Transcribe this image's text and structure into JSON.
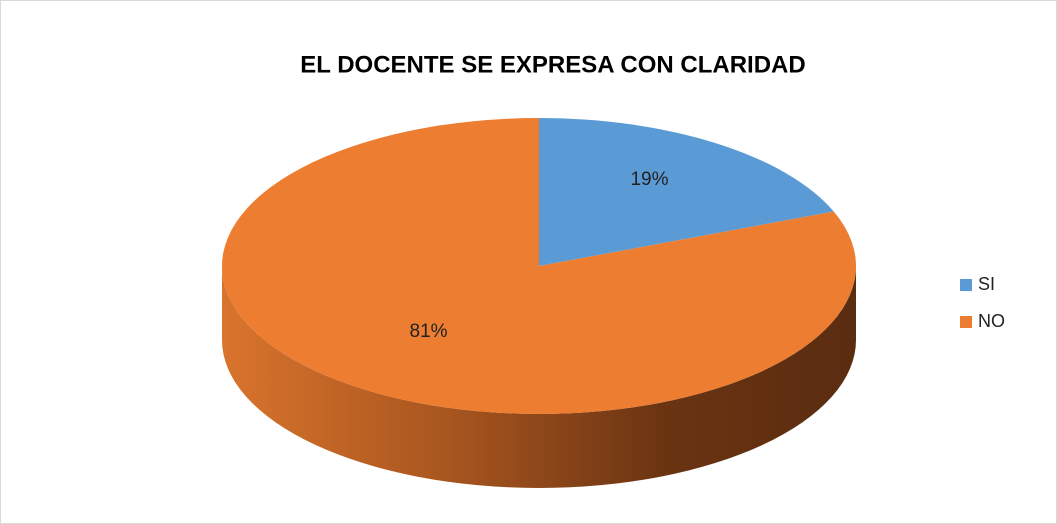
{
  "chart_data": {
    "type": "pie",
    "title": "EL DOCENTE SE EXPRESA CON CLARIDAD",
    "categories": [
      "SI",
      "NO"
    ],
    "values": [
      19,
      81
    ],
    "value_labels": [
      "19%",
      "81%"
    ],
    "colors": [
      "#5b9bd5",
      "#ed7d31"
    ],
    "legend": "right"
  }
}
